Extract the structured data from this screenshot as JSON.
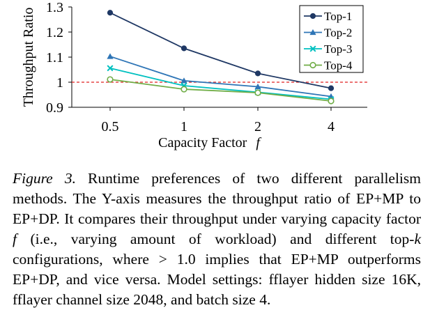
{
  "chart_data": {
    "type": "line",
    "categories": [
      "0.5",
      "1",
      "2",
      "4"
    ],
    "xlabel": "Capacity Factor",
    "xlabel_symbol": "f",
    "ylabel": "Throughput Ratio",
    "ylim": [
      0.9,
      1.3
    ],
    "yticks": [
      "0.9",
      "1",
      "1.1",
      "1.2",
      "1.3"
    ],
    "reference_line": 1.0,
    "legend_position": "top-right",
    "series": [
      {
        "name": "Top-1",
        "values": [
          1.277,
          1.135,
          1.035,
          0.976
        ],
        "color": "#1f3864",
        "marker": "circle"
      },
      {
        "name": "Top-2",
        "values": [
          1.103,
          1.006,
          0.982,
          0.943
        ],
        "color": "#2e75b6",
        "marker": "triangle"
      },
      {
        "name": "Top-3",
        "values": [
          1.056,
          0.986,
          0.96,
          0.932
        ],
        "color": "#00c0c0",
        "marker": "x"
      },
      {
        "name": "Top-4",
        "values": [
          1.011,
          0.972,
          0.958,
          0.925
        ],
        "color": "#70ad47",
        "marker": "open-circle"
      }
    ]
  },
  "caption": {
    "label": "Figure 3.",
    "text_1": " Runtime preferences of two different parallelism methods. The Y-axis measures the throughput ratio of EP+MP to EP+DP. It compares their throughput under varying capacity factor ",
    "symbol_f": "f",
    "text_2": " (i.e., varying amount of workload) and different top-",
    "symbol_k": "k",
    "text_3": " configurations, where > 1.0 implies that EP+MP outperforms EP+DP, and vice versa. Model settings: fflayer hidden size 16K, fflayer channel size 2048, and batch size 4."
  }
}
